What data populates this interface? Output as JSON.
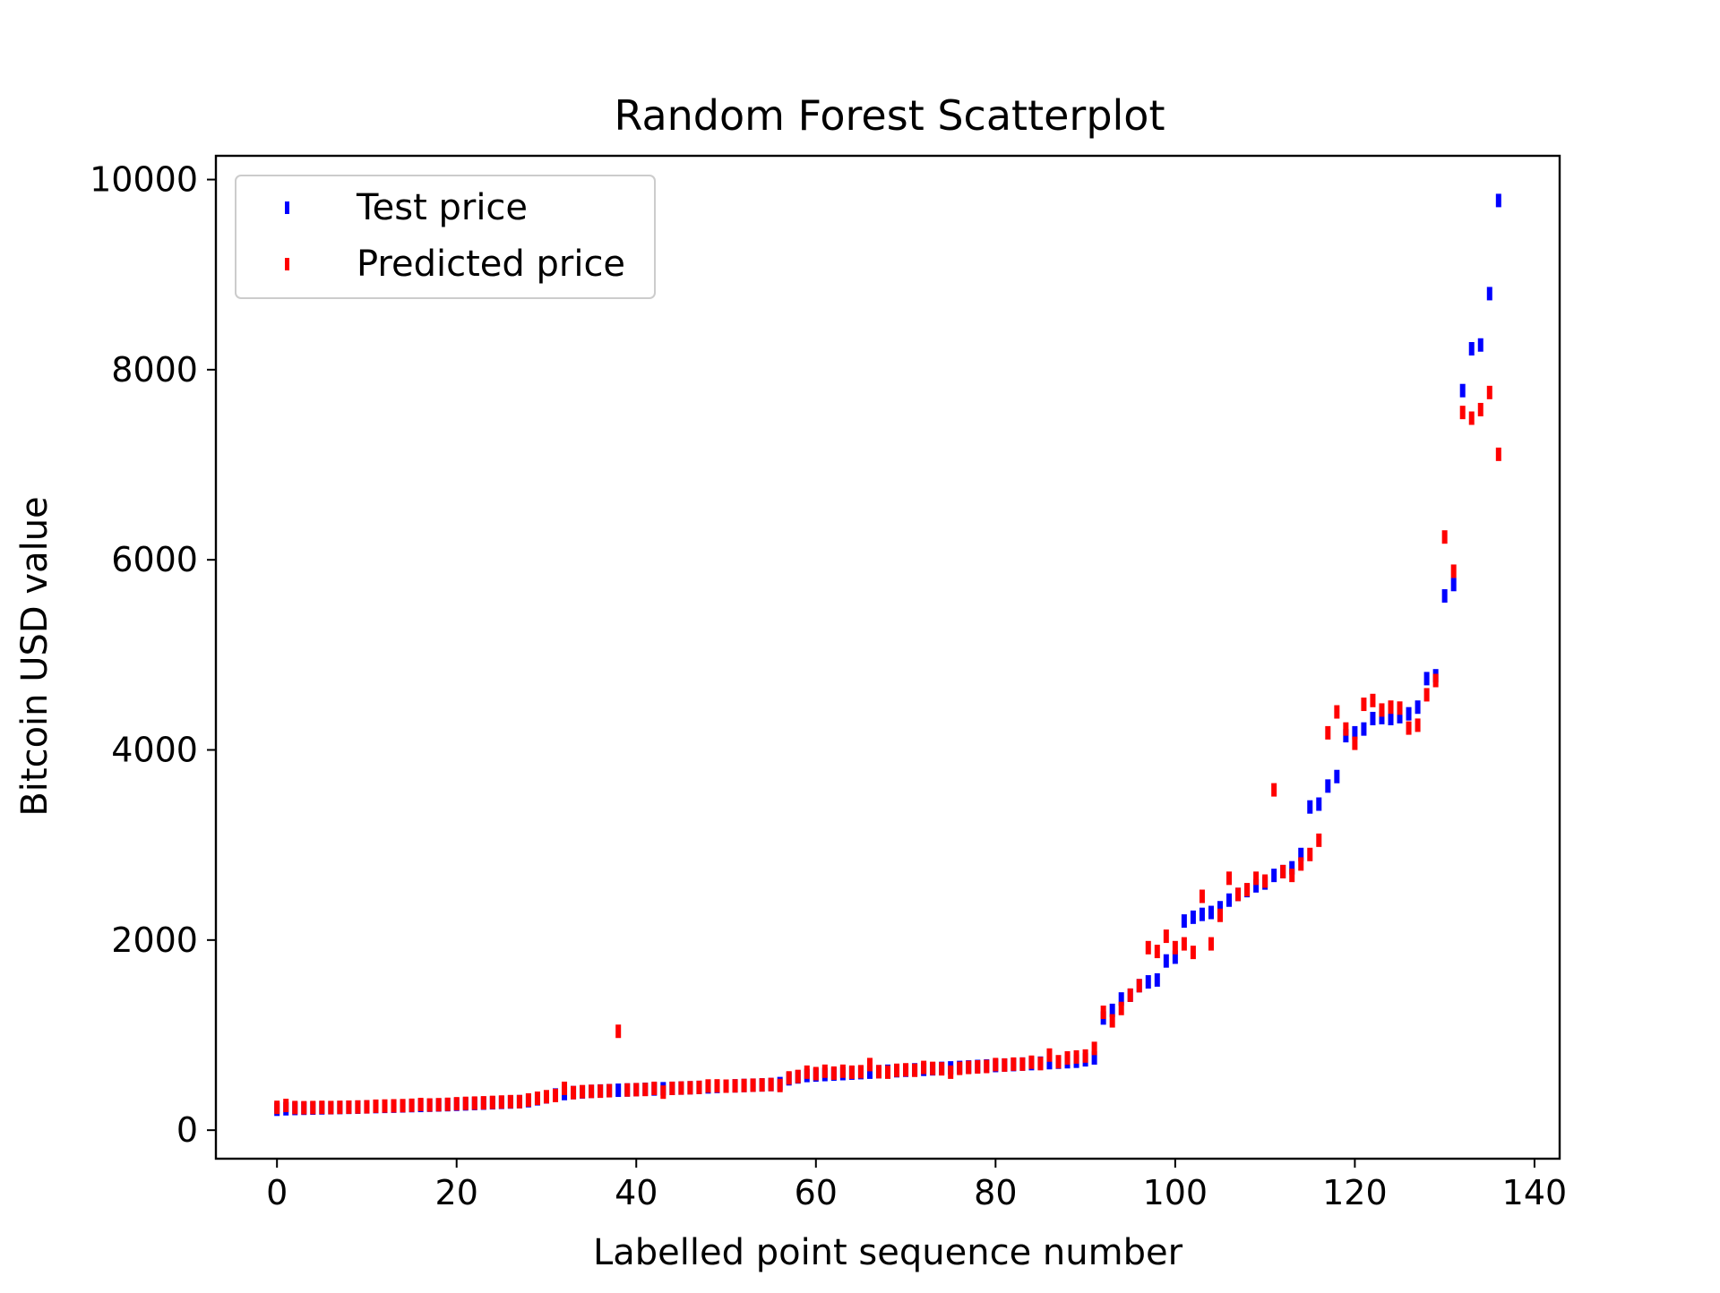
{
  "chart_data": {
    "type": "scatter",
    "title": "Random Forest Scatterplot",
    "xlabel": "Labelled point sequence number",
    "ylabel": "Bitcoin USD value",
    "xlim": [
      -6.8,
      142.8
    ],
    "ylim": [
      -300,
      10250
    ],
    "xticks": [
      0,
      20,
      40,
      60,
      80,
      100,
      120,
      140
    ],
    "xtick_labels": [
      "0",
      "20",
      "40",
      "60",
      "80",
      "100",
      "120",
      "140"
    ],
    "yticks": [
      0,
      2000,
      4000,
      6000,
      8000,
      10000
    ],
    "ytick_labels": [
      "0",
      "2000",
      "4000",
      "6000",
      "8000",
      "10000"
    ],
    "grid": false,
    "legend_position": "upper-left",
    "marker": "vertical-dash",
    "series": [
      {
        "name": "Test price",
        "color": "#0000ff",
        "points": [
          [
            0,
            220
          ],
          [
            1,
            225
          ],
          [
            2,
            228
          ],
          [
            3,
            230
          ],
          [
            4,
            232
          ],
          [
            5,
            234
          ],
          [
            6,
            236
          ],
          [
            7,
            238
          ],
          [
            8,
            240
          ],
          [
            9,
            242
          ],
          [
            10,
            245
          ],
          [
            11,
            248
          ],
          [
            12,
            250
          ],
          [
            13,
            252
          ],
          [
            14,
            255
          ],
          [
            15,
            258
          ],
          [
            16,
            260
          ],
          [
            17,
            262
          ],
          [
            18,
            265
          ],
          [
            19,
            268
          ],
          [
            20,
            272
          ],
          [
            21,
            276
          ],
          [
            22,
            280
          ],
          [
            23,
            284
          ],
          [
            24,
            288
          ],
          [
            25,
            292
          ],
          [
            26,
            296
          ],
          [
            27,
            300
          ],
          [
            28,
            310
          ],
          [
            29,
            330
          ],
          [
            30,
            350
          ],
          [
            31,
            370
          ],
          [
            32,
            385
          ],
          [
            33,
            395
          ],
          [
            34,
            402
          ],
          [
            35,
            408
          ],
          [
            36,
            412
          ],
          [
            37,
            416
          ],
          [
            38,
            420
          ],
          [
            39,
            423
          ],
          [
            40,
            426
          ],
          [
            41,
            430
          ],
          [
            42,
            433
          ],
          [
            43,
            436
          ],
          [
            44,
            440
          ],
          [
            45,
            443
          ],
          [
            46,
            446
          ],
          [
            47,
            450
          ],
          [
            48,
            455
          ],
          [
            49,
            460
          ],
          [
            50,
            463
          ],
          [
            51,
            466
          ],
          [
            52,
            470
          ],
          [
            53,
            473
          ],
          [
            54,
            476
          ],
          [
            55,
            480
          ],
          [
            56,
            490
          ],
          [
            57,
            540
          ],
          [
            58,
            560
          ],
          [
            59,
            575
          ],
          [
            60,
            580
          ],
          [
            61,
            585
          ],
          [
            62,
            590
          ],
          [
            63,
            595
          ],
          [
            64,
            600
          ],
          [
            65,
            605
          ],
          [
            66,
            610
          ],
          [
            67,
            615
          ],
          [
            68,
            620
          ],
          [
            69,
            625
          ],
          [
            70,
            630
          ],
          [
            71,
            635
          ],
          [
            72,
            640
          ],
          [
            73,
            645
          ],
          [
            74,
            650
          ],
          [
            75,
            655
          ],
          [
            76,
            660
          ],
          [
            77,
            665
          ],
          [
            78,
            670
          ],
          [
            79,
            675
          ],
          [
            80,
            680
          ],
          [
            81,
            685
          ],
          [
            82,
            690
          ],
          [
            83,
            695
          ],
          [
            84,
            700
          ],
          [
            85,
            705
          ],
          [
            86,
            710
          ],
          [
            87,
            715
          ],
          [
            88,
            720
          ],
          [
            89,
            725
          ],
          [
            90,
            740
          ],
          [
            91,
            760
          ],
          [
            92,
            1180
          ],
          [
            93,
            1260
          ],
          [
            94,
            1380
          ],
          [
            95,
            1420
          ],
          [
            96,
            1520
          ],
          [
            97,
            1560
          ],
          [
            98,
            1580
          ],
          [
            99,
            1780
          ],
          [
            100,
            1820
          ],
          [
            101,
            2200
          ],
          [
            102,
            2240
          ],
          [
            103,
            2270
          ],
          [
            104,
            2290
          ],
          [
            105,
            2340
          ],
          [
            106,
            2420
          ],
          [
            107,
            2480
          ],
          [
            108,
            2520
          ],
          [
            109,
            2570
          ],
          [
            110,
            2600
          ],
          [
            111,
            2680
          ],
          [
            112,
            2720
          ],
          [
            113,
            2760
          ],
          [
            114,
            2900
          ],
          [
            115,
            3400
          ],
          [
            116,
            3430
          ],
          [
            117,
            3620
          ],
          [
            118,
            3720
          ],
          [
            119,
            4150
          ],
          [
            120,
            4180
          ],
          [
            121,
            4220
          ],
          [
            122,
            4330
          ],
          [
            123,
            4340
          ],
          [
            124,
            4330
          ],
          [
            125,
            4350
          ],
          [
            126,
            4380
          ],
          [
            127,
            4450
          ],
          [
            128,
            4750
          ],
          [
            129,
            4780
          ],
          [
            130,
            5620
          ],
          [
            131,
            5740
          ],
          [
            132,
            7780
          ],
          [
            133,
            8220
          ],
          [
            134,
            8260
          ],
          [
            135,
            8800
          ],
          [
            136,
            9780
          ]
        ]
      },
      {
        "name": "Predicted price",
        "color": "#ff0000",
        "points": [
          [
            0,
            240
          ],
          [
            1,
            260
          ],
          [
            2,
            238
          ],
          [
            3,
            236
          ],
          [
            4,
            238
          ],
          [
            5,
            240
          ],
          [
            6,
            238
          ],
          [
            7,
            240
          ],
          [
            8,
            242
          ],
          [
            9,
            244
          ],
          [
            10,
            246
          ],
          [
            11,
            252
          ],
          [
            12,
            254
          ],
          [
            13,
            256
          ],
          [
            14,
            258
          ],
          [
            15,
            262
          ],
          [
            16,
            270
          ],
          [
            17,
            265
          ],
          [
            18,
            268
          ],
          [
            19,
            272
          ],
          [
            20,
            278
          ],
          [
            21,
            282
          ],
          [
            22,
            285
          ],
          [
            23,
            288
          ],
          [
            24,
            292
          ],
          [
            25,
            296
          ],
          [
            26,
            300
          ],
          [
            27,
            300
          ],
          [
            28,
            318
          ],
          [
            29,
            336
          ],
          [
            30,
            352
          ],
          [
            31,
            365
          ],
          [
            32,
            440
          ],
          [
            33,
            395
          ],
          [
            34,
            405
          ],
          [
            35,
            408
          ],
          [
            36,
            410
          ],
          [
            37,
            415
          ],
          [
            38,
            1040
          ],
          [
            39,
            423
          ],
          [
            40,
            426
          ],
          [
            41,
            428
          ],
          [
            42,
            440
          ],
          [
            43,
            400
          ],
          [
            44,
            440
          ],
          [
            45,
            443
          ],
          [
            46,
            446
          ],
          [
            47,
            450
          ],
          [
            48,
            465
          ],
          [
            49,
            466
          ],
          [
            50,
            463
          ],
          [
            51,
            466
          ],
          [
            52,
            470
          ],
          [
            53,
            473
          ],
          [
            54,
            476
          ],
          [
            55,
            480
          ],
          [
            56,
            470
          ],
          [
            57,
            550
          ],
          [
            58,
            565
          ],
          [
            59,
            610
          ],
          [
            60,
            595
          ],
          [
            61,
            620
          ],
          [
            62,
            600
          ],
          [
            63,
            620
          ],
          [
            64,
            610
          ],
          [
            65,
            615
          ],
          [
            66,
            690
          ],
          [
            67,
            615
          ],
          [
            68,
            610
          ],
          [
            69,
            630
          ],
          [
            70,
            635
          ],
          [
            71,
            630
          ],
          [
            72,
            660
          ],
          [
            73,
            650
          ],
          [
            74,
            645
          ],
          [
            75,
            610
          ],
          [
            76,
            650
          ],
          [
            77,
            660
          ],
          [
            78,
            665
          ],
          [
            79,
            670
          ],
          [
            80,
            690
          ],
          [
            81,
            685
          ],
          [
            82,
            695
          ],
          [
            83,
            695
          ],
          [
            84,
            715
          ],
          [
            85,
            700
          ],
          [
            86,
            790
          ],
          [
            87,
            720
          ],
          [
            88,
            760
          ],
          [
            89,
            770
          ],
          [
            90,
            780
          ],
          [
            91,
            860
          ],
          [
            92,
            1240
          ],
          [
            93,
            1150
          ],
          [
            94,
            1280
          ],
          [
            95,
            1420
          ],
          [
            96,
            1520
          ],
          [
            97,
            1920
          ],
          [
            98,
            1880
          ],
          [
            99,
            2040
          ],
          [
            100,
            1920
          ],
          [
            101,
            1960
          ],
          [
            102,
            1870
          ],
          [
            103,
            2460
          ],
          [
            104,
            1960
          ],
          [
            105,
            2260
          ],
          [
            106,
            2650
          ],
          [
            107,
            2480
          ],
          [
            108,
            2530
          ],
          [
            109,
            2650
          ],
          [
            110,
            2620
          ],
          [
            111,
            3580
          ],
          [
            112,
            2720
          ],
          [
            113,
            2680
          ],
          [
            114,
            2800
          ],
          [
            115,
            2900
          ],
          [
            116,
            3050
          ],
          [
            117,
            4180
          ],
          [
            118,
            4400
          ],
          [
            119,
            4220
          ],
          [
            120,
            4070
          ],
          [
            121,
            4480
          ],
          [
            122,
            4520
          ],
          [
            123,
            4420
          ],
          [
            124,
            4450
          ],
          [
            125,
            4440
          ],
          [
            126,
            4230
          ],
          [
            127,
            4260
          ],
          [
            128,
            4580
          ],
          [
            129,
            4730
          ],
          [
            130,
            6240
          ],
          [
            131,
            5880
          ],
          [
            132,
            7550
          ],
          [
            133,
            7490
          ],
          [
            134,
            7580
          ],
          [
            135,
            7760
          ],
          [
            136,
            7110
          ]
        ]
      }
    ]
  }
}
